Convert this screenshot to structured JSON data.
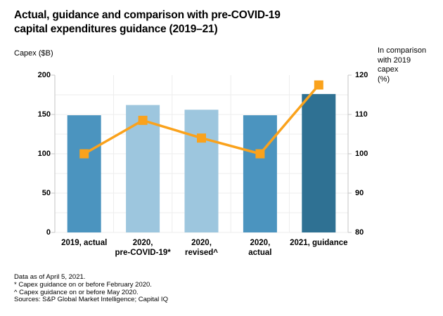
{
  "header": {
    "title": "Actual, guidance and comparison with pre-COVID-19\ncapital expenditures guidance (2019–21)"
  },
  "axes": {
    "left_header": "Capex ($B)",
    "right_header": "In comparison\nwith 2019\ncapex\n(%)"
  },
  "chart_data": {
    "type": "bar",
    "subtype": "bar-with-line-overlay",
    "title": "Actual, guidance and comparison with pre-COVID-19 capital expenditures guidance (2019–21)",
    "categories": [
      "2019, actual",
      "2020,\npre-COVID-19*",
      "2020,\nrevised^",
      "2020,\nactual",
      "2021, guidance"
    ],
    "series": [
      {
        "name": "Capex ($B)",
        "type": "bar",
        "axis": "left",
        "values": [
          149,
          162,
          156,
          149,
          176
        ],
        "bar_colors": [
          "#4B94BF",
          "#9DC6DE",
          "#9DC6DE",
          "#4B94BF",
          "#2F7193"
        ]
      },
      {
        "name": "In comparison with 2019 capex (%)",
        "type": "line",
        "axis": "right",
        "values": [
          100,
          108.5,
          104,
          100,
          117.5
        ],
        "color": "#FAA21C",
        "marker": "square"
      }
    ],
    "left_axis": {
      "label": "Capex ($B)",
      "min": 0,
      "max": 200,
      "ticks": [
        0,
        50,
        100,
        150,
        200
      ]
    },
    "right_axis": {
      "label": "In comparison with 2019 capex (%)",
      "min": 80,
      "max": 120,
      "ticks": [
        80,
        90,
        100,
        110,
        120
      ]
    },
    "grid": "faint horizontal lines every 5 right-axis units; faint vertical lines at category boundaries",
    "legend_position": "none"
  },
  "footnotes": {
    "lines": "Data as of April 5, 2021.\n* Capex guidance on or before February 2020.\n^ Capex guidance on or before May 2020.\nSources: S&P Global Market Intelligence; Capital IQ"
  },
  "colors": {
    "bar_medium_blue": "#4B94BF",
    "bar_light_blue": "#9DC6DE",
    "bar_dark_blue": "#2F7193",
    "line_orange": "#FAA21C",
    "axis_line": "#c4c4c4",
    "gridline": "#ededed",
    "text": "#000000",
    "background": "#ffffff"
  }
}
